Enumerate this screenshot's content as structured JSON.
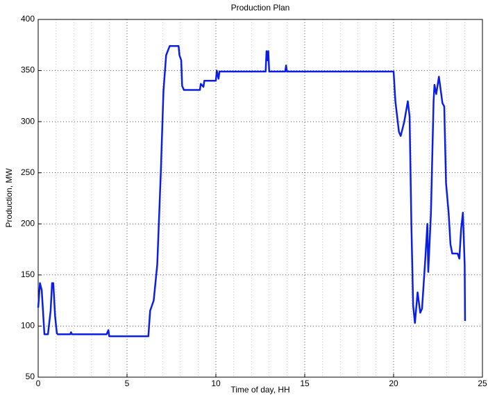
{
  "chart_data": {
    "type": "line",
    "title": "Production Plan",
    "xlabel": "Time of day, HH",
    "ylabel": "Production, MW",
    "xlim": [
      0,
      25
    ],
    "ylim": [
      50,
      400
    ],
    "xticks": [
      0,
      5,
      10,
      15,
      20,
      25
    ],
    "yticks": [
      50,
      100,
      150,
      200,
      250,
      300,
      350,
      400
    ],
    "grid": true,
    "minor_grid_step": 1,
    "series": [
      {
        "color": "#0a1ee6",
        "x": [
          0,
          0.1,
          0.2,
          0.35,
          0.55,
          0.7,
          0.78,
          0.85,
          0.95,
          1.05,
          1.1,
          1.8,
          1.85,
          1.9,
          3.85,
          3.95,
          4.0,
          6.2,
          6.3,
          6.5,
          6.7,
          6.9,
          7.05,
          7.2,
          7.4,
          7.9,
          7.95,
          8.05,
          8.1,
          8.2,
          9.1,
          9.15,
          9.3,
          9.35,
          10.0,
          10.05,
          10.15,
          10.2,
          12.8,
          12.85,
          12.9,
          12.95,
          13.0,
          13.9,
          13.95,
          14.0,
          20.0,
          20.1,
          20.3,
          20.4,
          20.6,
          20.8,
          20.9,
          21.0,
          21.1,
          21.2,
          21.35,
          21.5,
          21.6,
          21.8,
          21.9,
          21.95,
          22.1,
          22.25,
          22.3,
          22.4,
          22.55,
          22.75,
          22.85,
          22.95,
          23.1,
          23.2,
          23.3,
          23.6,
          23.7,
          23.8,
          23.9,
          24.0,
          24.02
        ],
        "values": [
          118,
          142,
          135,
          92,
          92,
          115,
          142,
          142,
          110,
          93,
          92,
          92,
          94,
          92,
          92,
          96,
          90,
          90,
          115,
          125,
          160,
          250,
          330,
          365,
          374,
          374,
          365,
          360,
          335,
          331,
          331,
          337,
          334,
          340,
          340,
          350,
          342,
          349,
          349,
          369,
          360,
          369,
          349,
          349,
          355,
          349,
          349,
          320,
          290,
          286,
          300,
          320,
          305,
          200,
          120,
          103,
          133,
          113,
          117,
          170,
          200,
          153,
          210,
          320,
          336,
          327,
          344,
          318,
          315,
          240,
          210,
          180,
          171,
          171,
          166,
          195,
          211,
          160,
          105
        ]
      }
    ]
  }
}
